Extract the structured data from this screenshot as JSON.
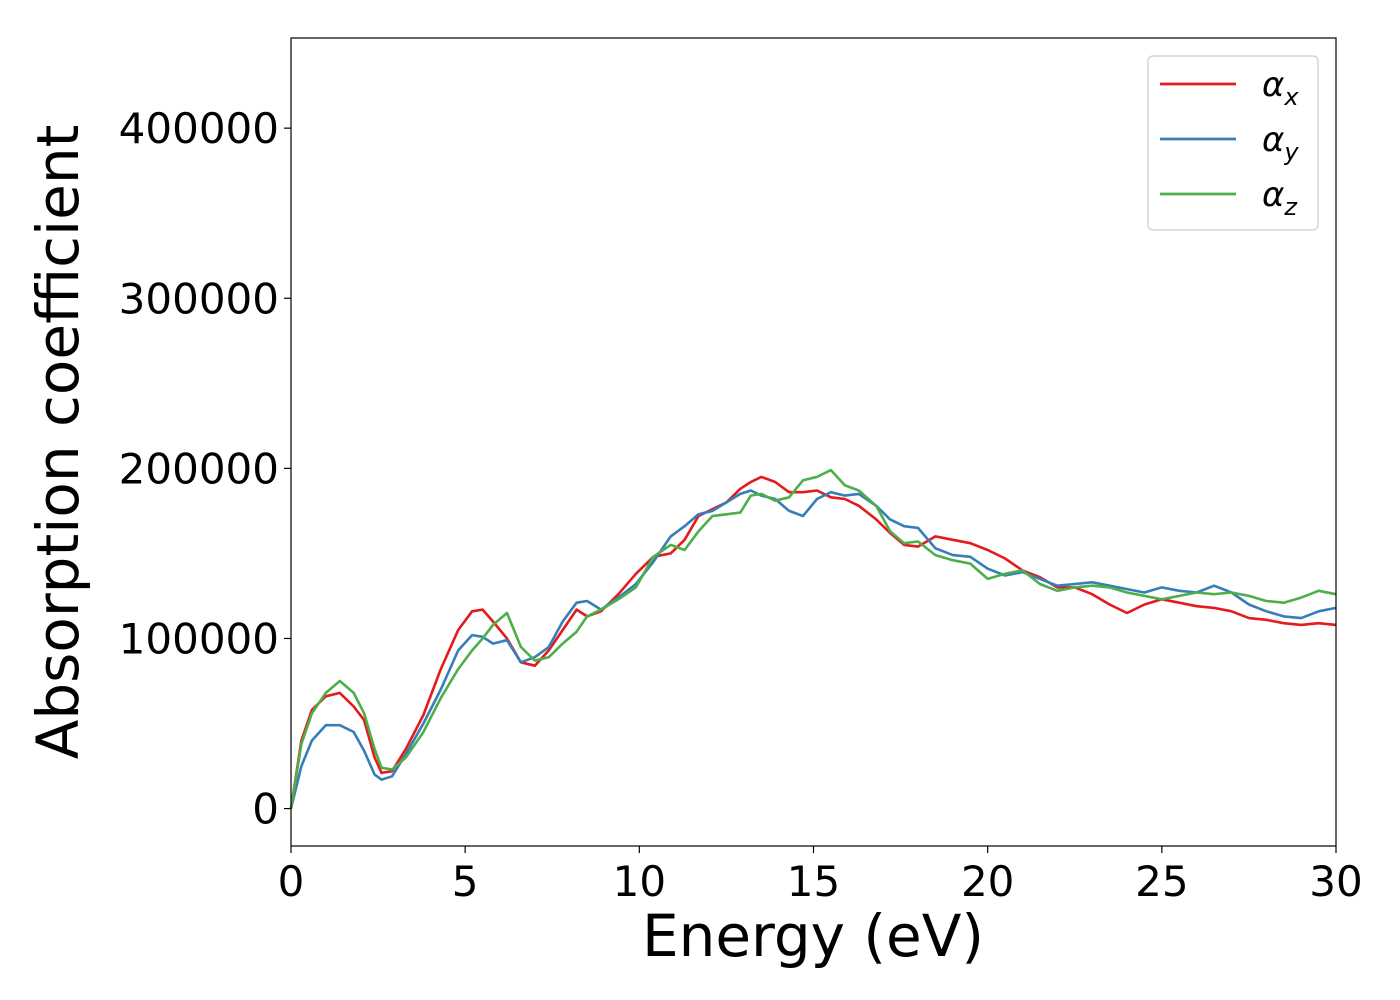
{
  "chart_data": {
    "type": "line",
    "xlabel": "Energy (eV)",
    "ylabel": "Absorption coefficient",
    "xlim": [
      0,
      30
    ],
    "ylim": [
      -22000,
      453000
    ],
    "x_ticks": [
      "0",
      "5",
      "10",
      "15",
      "20",
      "25",
      "30"
    ],
    "y_ticks": [
      "0",
      "100000",
      "200000",
      "300000",
      "400000"
    ],
    "legend_position": "top-right",
    "grid": false,
    "series": [
      {
        "name": "α_x",
        "legend_base": "α",
        "legend_sub": "x",
        "color": "#e41a1c",
        "x": [
          0,
          0.3,
          0.6,
          1,
          1.4,
          1.8,
          2.1,
          2.4,
          2.6,
          2.9,
          3.3,
          3.8,
          4.3,
          4.8,
          5.2,
          5.5,
          5.8,
          6.2,
          6.6,
          7.0,
          7.4,
          7.8,
          8.2,
          8.5,
          8.9,
          9.4,
          9.9,
          10.4,
          10.9,
          11.3,
          11.7,
          12.1,
          12.5,
          12.9,
          13.2,
          13.5,
          13.9,
          14.3,
          14.7,
          15.1,
          15.5,
          15.9,
          16.3,
          16.8,
          17.2,
          17.6,
          18.0,
          18.5,
          19.0,
          19.5,
          20.0,
          20.5,
          21.0,
          21.5,
          22.0,
          22.5,
          23.0,
          23.5,
          24.0,
          24.5,
          25.0,
          25.5,
          26.0,
          26.5,
          27.0,
          27.5,
          28.0,
          28.5,
          29.0,
          29.5,
          30.0
        ],
        "y": [
          0,
          40000,
          58000,
          66000,
          68000,
          60000,
          52000,
          30000,
          21000,
          22000,
          35000,
          55000,
          82000,
          105000,
          116000,
          117000,
          110000,
          100000,
          86000,
          84000,
          93000,
          105000,
          117000,
          113000,
          116000,
          126000,
          138000,
          148000,
          150000,
          158000,
          172000,
          176000,
          180000,
          188000,
          192000,
          195000,
          192000,
          186000,
          186000,
          187000,
          183000,
          182000,
          178000,
          170000,
          162000,
          155000,
          154000,
          160000,
          158000,
          156000,
          152000,
          147000,
          140000,
          136000,
          130000,
          130000,
          126000,
          120000,
          115000,
          120000,
          123000,
          121000,
          119000,
          118000,
          116000,
          112000,
          111000,
          109000,
          108000,
          109000,
          108000
        ]
      },
      {
        "name": "α_y",
        "legend_base": "α",
        "legend_sub": "y",
        "color": "#377eb8",
        "x": [
          0,
          0.3,
          0.6,
          1,
          1.4,
          1.8,
          2.1,
          2.4,
          2.6,
          2.9,
          3.3,
          3.8,
          4.3,
          4.8,
          5.2,
          5.5,
          5.8,
          6.2,
          6.6,
          7.0,
          7.4,
          7.8,
          8.2,
          8.5,
          8.9,
          9.4,
          9.9,
          10.4,
          10.9,
          11.3,
          11.7,
          12.1,
          12.5,
          12.9,
          13.2,
          13.5,
          13.9,
          14.3,
          14.7,
          15.1,
          15.5,
          15.9,
          16.3,
          16.8,
          17.2,
          17.6,
          18.0,
          18.5,
          19.0,
          19.5,
          20.0,
          20.5,
          21.0,
          21.5,
          22.0,
          22.5,
          23.0,
          23.5,
          24.0,
          24.5,
          25.0,
          25.5,
          26.0,
          26.5,
          27.0,
          27.5,
          28.0,
          28.5,
          29.0,
          29.5,
          30.0
        ],
        "y": [
          0,
          25000,
          40000,
          49000,
          49000,
          45000,
          34000,
          20000,
          17000,
          19000,
          32000,
          50000,
          70000,
          93000,
          102000,
          101000,
          97000,
          99000,
          86000,
          89000,
          95000,
          110000,
          121000,
          122000,
          117000,
          124000,
          132000,
          145000,
          160000,
          166000,
          173000,
          175000,
          180000,
          185000,
          187000,
          184000,
          182000,
          175000,
          172000,
          182000,
          186000,
          184000,
          185000,
          178000,
          170000,
          166000,
          165000,
          153000,
          149000,
          148000,
          141000,
          137000,
          139000,
          135000,
          131000,
          132000,
          133000,
          131000,
          129000,
          127000,
          130000,
          128000,
          127000,
          131000,
          127000,
          120000,
          116000,
          113000,
          112000,
          116000,
          118000
        ]
      },
      {
        "name": "α_z",
        "legend_base": "α",
        "legend_sub": "z",
        "color": "#4daf4a",
        "x": [
          0,
          0.3,
          0.6,
          1,
          1.4,
          1.8,
          2.1,
          2.4,
          2.6,
          2.9,
          3.3,
          3.8,
          4.3,
          4.8,
          5.2,
          5.5,
          5.8,
          6.2,
          6.6,
          7.0,
          7.4,
          7.8,
          8.2,
          8.5,
          8.9,
          9.4,
          9.9,
          10.4,
          10.9,
          11.3,
          11.7,
          12.1,
          12.5,
          12.9,
          13.2,
          13.5,
          13.9,
          14.3,
          14.7,
          15.1,
          15.5,
          15.9,
          16.3,
          16.8,
          17.2,
          17.6,
          18.0,
          18.5,
          19.0,
          19.5,
          20.0,
          20.5,
          21.0,
          21.5,
          22.0,
          22.5,
          23.0,
          23.5,
          24.0,
          24.5,
          25.0,
          25.5,
          26.0,
          26.5,
          27.0,
          27.5,
          28.0,
          28.5,
          29.0,
          29.5,
          30.0
        ],
        "y": [
          0,
          38000,
          56000,
          68000,
          75000,
          68000,
          56000,
          35000,
          24000,
          23000,
          30000,
          45000,
          65000,
          82000,
          93000,
          100000,
          108000,
          115000,
          95000,
          87000,
          89000,
          97000,
          104000,
          113000,
          117000,
          123000,
          130000,
          148000,
          155000,
          152000,
          163000,
          172000,
          173000,
          174000,
          184000,
          185000,
          181000,
          183000,
          193000,
          195000,
          199000,
          190000,
          187000,
          178000,
          163000,
          156000,
          157000,
          149000,
          146000,
          144000,
          135000,
          138000,
          140000,
          132000,
          128000,
          130000,
          131000,
          130000,
          127000,
          125000,
          123000,
          125000,
          127000,
          126000,
          127000,
          125000,
          122000,
          121000,
          124000,
          128000,
          126000
        ]
      }
    ]
  }
}
